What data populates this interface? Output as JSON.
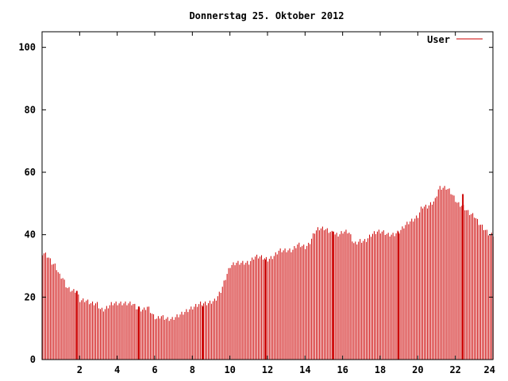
{
  "chart_data": {
    "type": "bar",
    "title": "Donnerstag 25. Oktober 2012",
    "xlabel": "",
    "ylabel": "",
    "xlim": [
      0,
      24
    ],
    "ylim": [
      0,
      105
    ],
    "xticks": [
      "2",
      "4",
      "6",
      "8",
      "10",
      "12",
      "14",
      "16",
      "18",
      "20",
      "22",
      "24"
    ],
    "yticks": [
      "0",
      "20",
      "40",
      "60",
      "80",
      "100"
    ],
    "grid": false,
    "legend": "top-right",
    "series": [
      {
        "name": "User",
        "color": "#cc0000",
        "anchors": [
          [
            0,
            34
          ],
          [
            0.1,
            34
          ],
          [
            0.3,
            33
          ],
          [
            0.5,
            31
          ],
          [
            0.7,
            30
          ],
          [
            0.9,
            27
          ],
          [
            1.1,
            26
          ],
          [
            1.3,
            23
          ],
          [
            1.6,
            22
          ],
          [
            1.8,
            22
          ],
          [
            2.0,
            19
          ],
          [
            2.3,
            19
          ],
          [
            2.6,
            18
          ],
          [
            2.9,
            18
          ],
          [
            3.1,
            16
          ],
          [
            3.3,
            16
          ],
          [
            3.5,
            17
          ],
          [
            3.7,
            18
          ],
          [
            4.0,
            18
          ],
          [
            4.5,
            18
          ],
          [
            4.8,
            18
          ],
          [
            5.1,
            16
          ],
          [
            5.4,
            16
          ],
          [
            5.6,
            17
          ],
          [
            5.9,
            14
          ],
          [
            6.1,
            13
          ],
          [
            6.3,
            14
          ],
          [
            6.6,
            13
          ],
          [
            6.9,
            13
          ],
          [
            7.2,
            14
          ],
          [
            7.5,
            15
          ],
          [
            7.8,
            16
          ],
          [
            8.1,
            17
          ],
          [
            8.4,
            18
          ],
          [
            8.8,
            18
          ],
          [
            9.2,
            19
          ],
          [
            9.5,
            22
          ],
          [
            9.8,
            27
          ],
          [
            10.0,
            30
          ],
          [
            10.3,
            31
          ],
          [
            10.7,
            31
          ],
          [
            11.0,
            31
          ],
          [
            11.3,
            33
          ],
          [
            11.6,
            33
          ],
          [
            12.0,
            32
          ],
          [
            12.3,
            33
          ],
          [
            12.6,
            35
          ],
          [
            12.9,
            35
          ],
          [
            13.3,
            35
          ],
          [
            13.6,
            37
          ],
          [
            14.0,
            36
          ],
          [
            14.2,
            37
          ],
          [
            14.5,
            41
          ],
          [
            14.7,
            42
          ],
          [
            15.0,
            42
          ],
          [
            15.3,
            41
          ],
          [
            15.6,
            40
          ],
          [
            15.8,
            40
          ],
          [
            16.0,
            41
          ],
          [
            16.3,
            41
          ],
          [
            16.6,
            37
          ],
          [
            16.9,
            38
          ],
          [
            17.2,
            38
          ],
          [
            17.5,
            40
          ],
          [
            17.8,
            41
          ],
          [
            18.1,
            41
          ],
          [
            18.4,
            40
          ],
          [
            18.7,
            40
          ],
          [
            19.0,
            41
          ],
          [
            19.3,
            43
          ],
          [
            19.5,
            44
          ],
          [
            19.8,
            45
          ],
          [
            20.0,
            46
          ],
          [
            20.2,
            49
          ],
          [
            20.5,
            49
          ],
          [
            20.7,
            50
          ],
          [
            20.9,
            51
          ],
          [
            21.1,
            55
          ],
          [
            21.3,
            55
          ],
          [
            21.5,
            55
          ],
          [
            21.7,
            54
          ],
          [
            21.9,
            52
          ],
          [
            22.1,
            50
          ],
          [
            22.4,
            49
          ],
          [
            22.7,
            47
          ],
          [
            23.0,
            46
          ],
          [
            23.2,
            44
          ],
          [
            23.5,
            42
          ],
          [
            23.8,
            40
          ],
          [
            24,
            40
          ]
        ],
        "spikes": [
          [
            1.85,
            22
          ],
          [
            5.15,
            17
          ],
          [
            8.55,
            17
          ],
          [
            11.9,
            32
          ],
          [
            15.5,
            41
          ],
          [
            18.95,
            41
          ],
          [
            22.4,
            53
          ]
        ]
      }
    ]
  }
}
